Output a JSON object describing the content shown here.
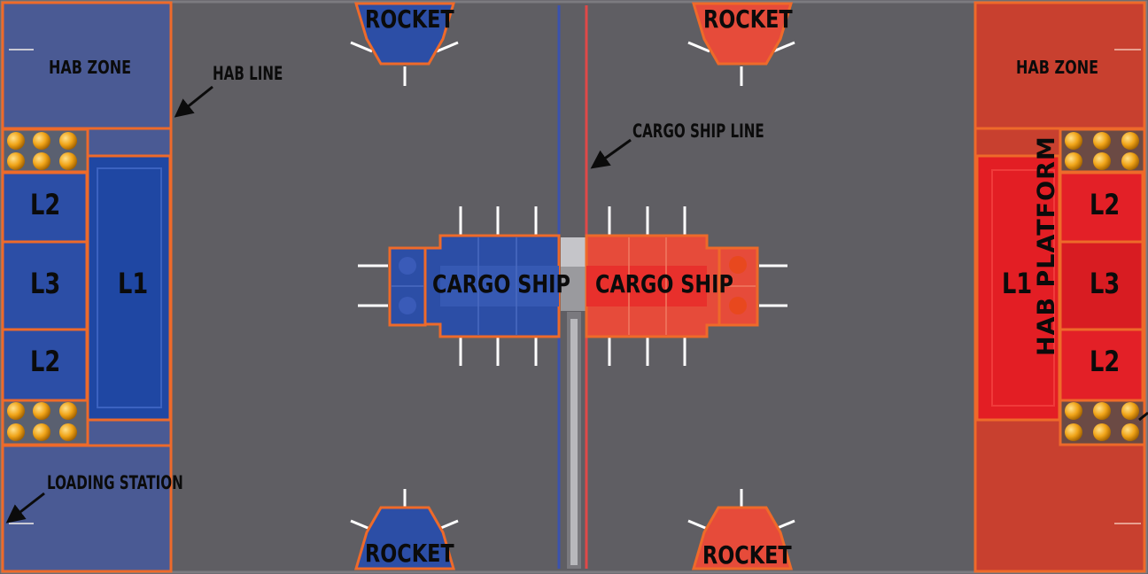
{
  "labels": {
    "hab_zone_left": "HAB ZONE",
    "hab_zone_right": "HAB ZONE",
    "hab_line": "HAB LINE",
    "cargo_ship_line": "CARGO SHIP LINE",
    "loading_station": "LOADING STATION",
    "hab_platform": "HAB PLATFORM",
    "rocket_top_left": "ROCKET",
    "rocket_top_right": "ROCKET",
    "rocket_bottom_left": "ROCKET",
    "rocket_bottom_right": "ROCKET",
    "cargo_ship_blue": "CARGO SHIP",
    "cargo_ship_red": "CARGO SHIP",
    "left_l2_top": "L2",
    "left_l3": "L3",
    "left_l2_bottom": "L2",
    "left_l1": "L1",
    "right_l1": "L1",
    "right_l2_top": "L2",
    "right_l3": "L3",
    "right_l2_bottom": "L2"
  },
  "colors": {
    "field": "#5f5e63",
    "blue_zone": "#4a5a94",
    "blue_platform": "#1f47a3",
    "red_zone": "#c8402f",
    "red_platform": "#e31e24",
    "border_orange": "#ee6a2a",
    "cargo_ball": "#f0a418",
    "blue_line": "#3a52b0",
    "red_line": "#e04848"
  }
}
